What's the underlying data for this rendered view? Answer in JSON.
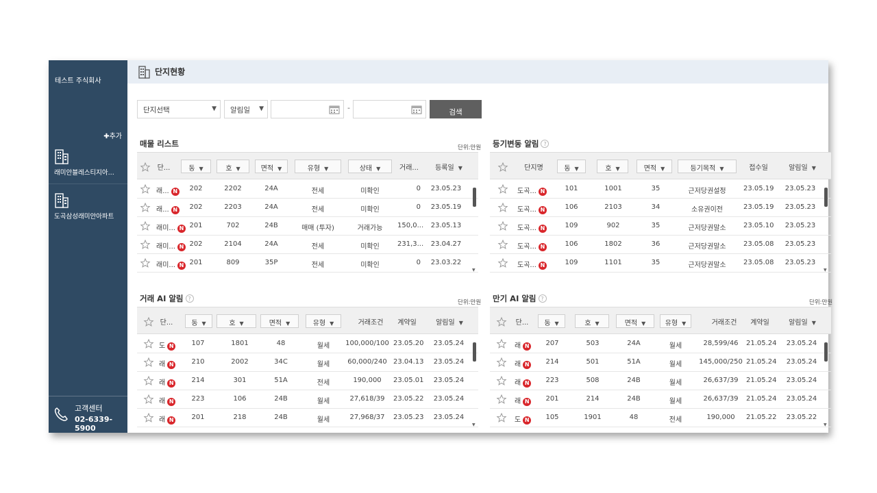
{
  "sidebar": {
    "company": "테스트 주식회사",
    "add_label": "✚추가",
    "complexes": [
      "래미안블레스티지아...",
      "도곡삼성래미안아파트"
    ],
    "support_title": "고객센터",
    "support_phone": "02-6339-5900"
  },
  "header": {
    "title": "단지현황"
  },
  "filters": {
    "complex_select": "단지선택",
    "date_type_select": "알림일",
    "dash": "-",
    "search_label": "검색"
  },
  "listings": {
    "title": "매물 리스트",
    "unit": "단위:만원",
    "headers": [
      "단...",
      "동",
      "호",
      "면적",
      "유형",
      "상태",
      "거래...",
      "등록일"
    ],
    "rows": [
      [
        "래...",
        "202",
        "2202",
        "24A",
        "전세",
        "미확인",
        "0",
        "23.05.23"
      ],
      [
        "래...",
        "202",
        "2203",
        "24A",
        "전세",
        "미확인",
        "0",
        "23.05.19"
      ],
      [
        "래미...",
        "201",
        "702",
        "24B",
        "매매 (투자)",
        "거래가능",
        "150,0...",
        "23.05.13"
      ],
      [
        "래미...",
        "202",
        "2104",
        "24A",
        "전세",
        "미확인",
        "231,3...",
        "23.04.27"
      ],
      [
        "래미...",
        "201",
        "809",
        "35P",
        "전세",
        "미확인",
        "0",
        "23.03.22"
      ]
    ]
  },
  "registry": {
    "title": "등기변동 알림",
    "headers": [
      "단지명",
      "동",
      "호",
      "면적",
      "등기목적",
      "접수일",
      "알림일"
    ],
    "rows": [
      [
        "도곡...",
        "101",
        "1001",
        "35",
        "근저당권설정",
        "23.05.19",
        "23.05.23"
      ],
      [
        "도곡...",
        "106",
        "2103",
        "34",
        "소유권이전",
        "23.05.19",
        "23.05.23"
      ],
      [
        "도곡...",
        "109",
        "902",
        "35",
        "근저당권말소",
        "23.05.10",
        "23.05.23"
      ],
      [
        "도곡...",
        "106",
        "1802",
        "36",
        "근저당권말소",
        "23.05.08",
        "23.05.23"
      ],
      [
        "도곡...",
        "109",
        "1101",
        "35",
        "근저당권말소",
        "23.05.08",
        "23.05.23"
      ]
    ]
  },
  "trade_ai": {
    "title": "거래 AI 알림",
    "unit": "단위:만원",
    "headers": [
      "단...",
      "동",
      "호",
      "면적",
      "유형",
      "거래조건",
      "계약일",
      "알림일"
    ],
    "rows": [
      [
        "도",
        "107",
        "1801",
        "48",
        "월세",
        "100,000/100",
        "23.05.20",
        "23.05.24"
      ],
      [
        "래",
        "210",
        "2002",
        "34C",
        "월세",
        "60,000/240",
        "23.04.13",
        "23.05.24"
      ],
      [
        "래",
        "214",
        "301",
        "51A",
        "전세",
        "190,000",
        "23.05.01",
        "23.05.24"
      ],
      [
        "래",
        "223",
        "106",
        "24B",
        "월세",
        "27,618/39",
        "23.05.22",
        "23.05.24"
      ],
      [
        "래",
        "201",
        "218",
        "24B",
        "월세",
        "27,968/37",
        "23.05.23",
        "23.05.24"
      ]
    ]
  },
  "expiry_ai": {
    "title": "만기 AI 알림",
    "unit": "단위:만원",
    "headers": [
      "단...",
      "동",
      "호",
      "면적",
      "유형",
      "거래조건",
      "계약일",
      "알림일"
    ],
    "rows": [
      [
        "래",
        "207",
        "503",
        "24A",
        "월세",
        "28,599/46",
        "21.05.24",
        "23.05.24"
      ],
      [
        "래",
        "214",
        "501",
        "51A",
        "월세",
        "145,000/250",
        "21.05.24",
        "23.05.24"
      ],
      [
        "래",
        "223",
        "508",
        "24B",
        "월세",
        "26,637/39",
        "21.05.24",
        "23.05.24"
      ],
      [
        "래",
        "201",
        "214",
        "24B",
        "월세",
        "26,637/39",
        "21.05.24",
        "23.05.24"
      ],
      [
        "도",
        "105",
        "1901",
        "48",
        "전세",
        "190,000",
        "21.05.22",
        "23.05.22"
      ]
    ]
  },
  "badge": "N",
  "colors": {
    "sidebar": "#2f4a63",
    "badge": "#d9262b",
    "search_button": "#5f5f5f"
  }
}
